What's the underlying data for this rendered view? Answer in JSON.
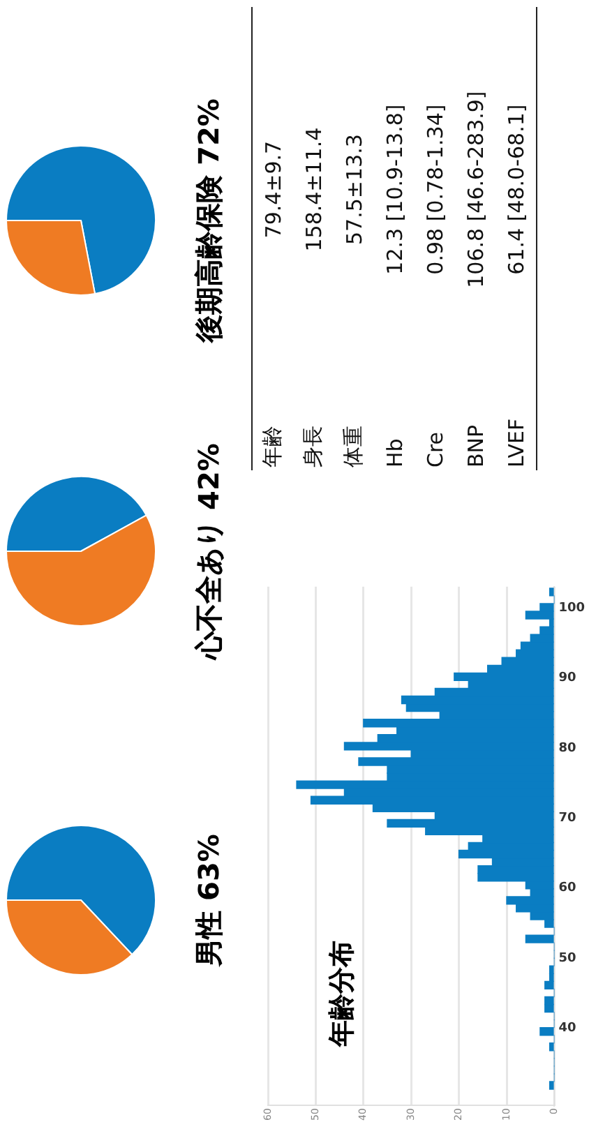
{
  "chart_data": [
    {
      "type": "pie",
      "title": "男性 63%",
      "categories": [
        null,
        null
      ],
      "values": [
        63,
        37
      ],
      "colors": [
        "#0a7dc2",
        "#ef7b23"
      ],
      "legend": false
    },
    {
      "type": "pie",
      "title": "心不全あり 42%",
      "categories": [
        null,
        null
      ],
      "values": [
        42,
        58
      ],
      "colors": [
        "#0a7dc2",
        "#ef7b23"
      ],
      "legend": false
    },
    {
      "type": "pie",
      "title": "後期高齢保険 72%",
      "categories": [
        null,
        null
      ],
      "values": [
        72,
        28
      ],
      "colors": [
        "#0a7dc2",
        "#ef7b23"
      ],
      "legend": false
    },
    {
      "type": "histogram",
      "title": "年齢分布",
      "color": "#0a7dc2",
      "orientation": "horizontal",
      "bins": [
        31.3,
        32.4,
        33.5,
        34.6,
        35.7,
        36.8,
        37.9,
        39.0,
        40.1,
        41.2,
        42.3,
        43.4,
        44.5,
        45.6,
        46.7,
        47.8,
        48.9,
        50.0,
        51.1,
        52.2,
        53.3,
        54.4,
        55.5,
        56.6,
        57.7,
        58.8,
        59.9,
        61.0,
        62.1,
        63.2,
        64.3,
        65.4,
        66.5,
        67.6,
        68.7,
        69.8,
        70.9,
        72.0,
        73.1,
        74.2,
        75.3,
        76.4,
        77.5,
        78.6,
        79.7,
        80.8,
        81.9,
        83.0,
        84.1,
        85.2,
        86.3,
        87.4,
        88.5,
        89.6,
        90.7,
        91.8,
        92.9,
        94.0,
        95.1,
        96.2,
        97.3,
        98.4,
        99.5,
        100.6,
        101.7,
        102.8
      ],
      "values": [
        1,
        0,
        0,
        0,
        0,
        1,
        0,
        3,
        0,
        0,
        2,
        2,
        0,
        2,
        1,
        1,
        0,
        0,
        0,
        6,
        0,
        2,
        5,
        8,
        10,
        5,
        6,
        16,
        16,
        13,
        20,
        18,
        15,
        27,
        35,
        25,
        38,
        51,
        44,
        54,
        35,
        35,
        41,
        30,
        44,
        37,
        33,
        40,
        24,
        31,
        32,
        25,
        18,
        21,
        14,
        11,
        8,
        7,
        5,
        3,
        1,
        6,
        3,
        0,
        1
      ],
      "xlim": [
        60,
        0
      ],
      "xticks": [
        60,
        50,
        40,
        30,
        20,
        10,
        0
      ],
      "ylim": [
        29,
        103
      ],
      "yticks": [
        40,
        50,
        60,
        70,
        80,
        90,
        100
      ],
      "grid": "x",
      "legend": false
    },
    {
      "type": "other",
      "categories": [
        "年齢",
        "身長",
        "体重",
        "Hb",
        "Cre",
        "BNP",
        "LVEF"
      ],
      "annotations": [
        "79.4±9.7",
        "158.4±11.4",
        "57.5±13.3",
        "12.3 [10.9-13.8]",
        "0.98 [0.78-1.34]",
        "106.8 [46.6-283.9]",
        "61.4 [48.0-68.1]"
      ]
    }
  ]
}
